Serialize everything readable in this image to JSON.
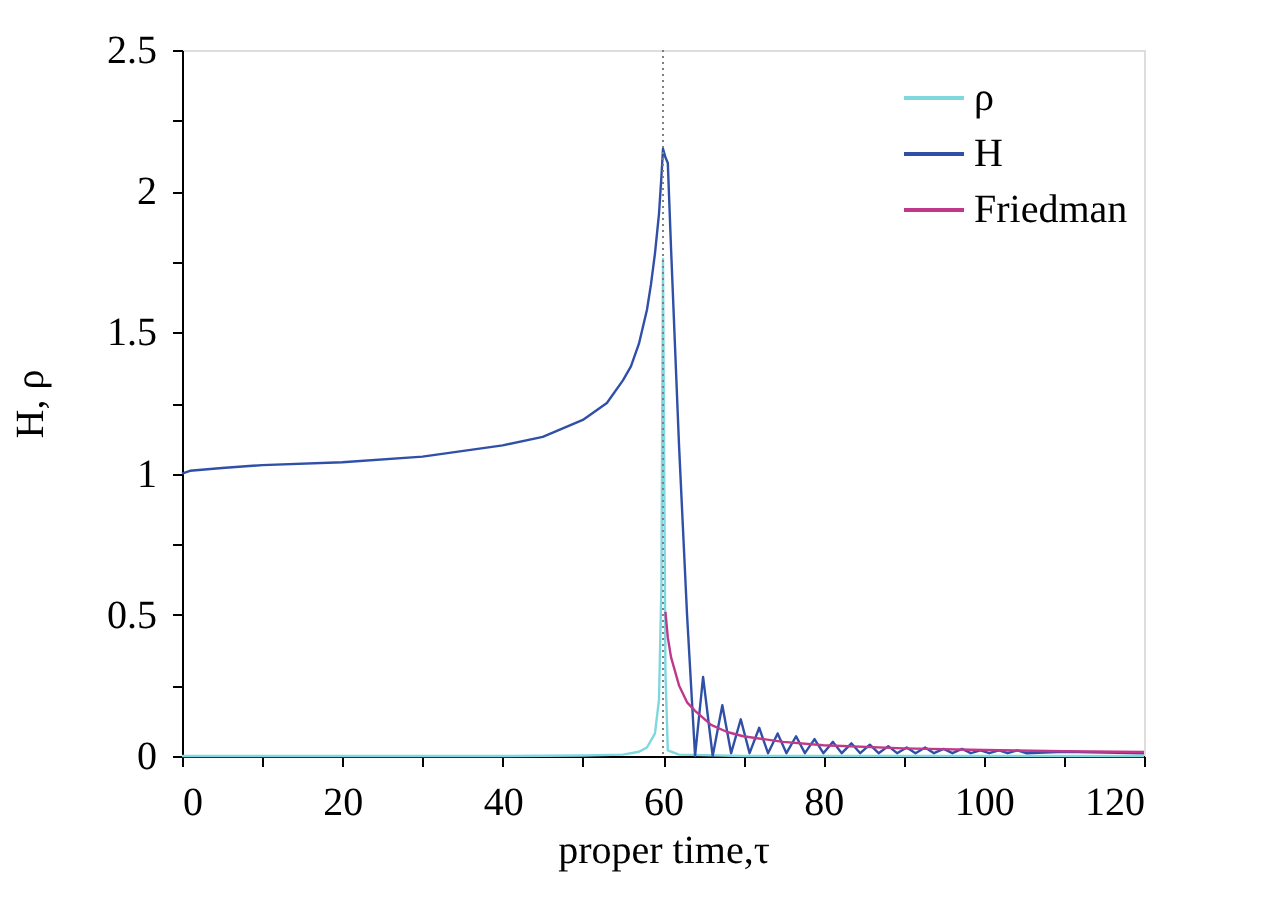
{
  "chart_data": {
    "type": "line",
    "xlabel": "proper time,τ",
    "ylabel": "H, ρ",
    "xlim": [
      0,
      120
    ],
    "ylim": [
      0,
      2.5
    ],
    "xticks": [
      0,
      {
        "value": 10,
        "label": null
      },
      20,
      {
        "value": 30,
        "label": null
      },
      40,
      {
        "value": 50,
        "label": null
      },
      60,
      {
        "value": 70,
        "label": null
      },
      80,
      {
        "value": 90,
        "label": null
      },
      100,
      {
        "value": 110,
        "label": null
      },
      120
    ],
    "yticks": [
      0,
      {
        "value": 0.25,
        "label": null
      },
      0.5,
      {
        "value": 0.75,
        "label": null
      },
      1,
      {
        "value": 1.25,
        "label": null
      },
      1.5,
      {
        "value": 1.75,
        "label": null
      },
      2,
      {
        "value": 2.25,
        "label": null
      },
      2.5
    ],
    "legend": "top right",
    "grid": false,
    "line_style": "solid",
    "marker": "none",
    "ref_lines": [
      {
        "axis": "x",
        "value": 60,
        "color": "#808080",
        "line_style": "dotted"
      }
    ],
    "series": [
      {
        "name": "ρ",
        "color": "#7fd7e0",
        "x": [
          0,
          40,
          50,
          55,
          57,
          58,
          59,
          59.5,
          59.8,
          60,
          60.3,
          60.6,
          62,
          70,
          120
        ],
        "values": [
          0,
          0,
          0.002,
          0.005,
          0.015,
          0.03,
          0.08,
          0.2,
          0.6,
          1.76,
          0.3,
          0.02,
          0.005,
          0,
          0
        ]
      },
      {
        "name": "H",
        "color": "#3050a8",
        "x": [
          0,
          1,
          5,
          10,
          20,
          30,
          40,
          45,
          50,
          53,
          55,
          56,
          57,
          58,
          58.5,
          59,
          59.5,
          59.8,
          60,
          60.3,
          60.6,
          61,
          62,
          63,
          64,
          65,
          66.2,
          67.4,
          68.5,
          69.7,
          70.8,
          72,
          73.1,
          74.3,
          75.4,
          76.6,
          77.7,
          78.9,
          80,
          81.2,
          82.3,
          83.5,
          84.6,
          85.8,
          86.9,
          88.1,
          89.2,
          90.4,
          91.5,
          92.7,
          93.8,
          95,
          96.1,
          97.3,
          98.4,
          99.6,
          100.7,
          101.9,
          103,
          104.2,
          105.3,
          110,
          115,
          120
        ],
        "values": [
          1.0,
          1.01,
          1.02,
          1.03,
          1.04,
          1.06,
          1.1,
          1.13,
          1.19,
          1.25,
          1.33,
          1.38,
          1.46,
          1.58,
          1.67,
          1.78,
          1.92,
          2.05,
          2.15,
          2.12,
          2.1,
          1.8,
          1.1,
          0.5,
          0.0,
          0.28,
          0.0,
          0.18,
          0.01,
          0.13,
          0.01,
          0.1,
          0.01,
          0.08,
          0.01,
          0.07,
          0.01,
          0.06,
          0.01,
          0.05,
          0.01,
          0.045,
          0.01,
          0.04,
          0.01,
          0.035,
          0.01,
          0.03,
          0.01,
          0.03,
          0.01,
          0.025,
          0.01,
          0.025,
          0.01,
          0.02,
          0.01,
          0.02,
          0.01,
          0.02,
          0.01,
          0.015,
          0.012,
          0.01
        ]
      },
      {
        "name": "Friedman",
        "color": "#c0388a",
        "x": [
          60.3,
          60.6,
          61,
          62,
          63,
          64,
          66,
          68,
          70,
          75,
          80,
          90,
          100,
          110,
          120
        ],
        "values": [
          0.51,
          0.42,
          0.35,
          0.25,
          0.19,
          0.16,
          0.11,
          0.085,
          0.07,
          0.05,
          0.038,
          0.027,
          0.021,
          0.017,
          0.014
        ]
      }
    ]
  }
}
